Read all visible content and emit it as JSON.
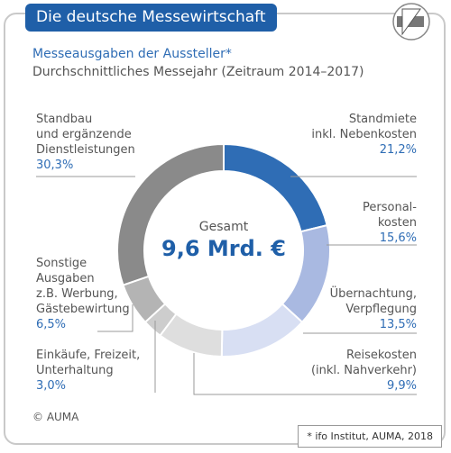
{
  "title": "Die deutsche Messewirtschaft",
  "source": "© AUMA",
  "footnote": "* ifo Institut, AUMA, 2018",
  "chart_data": {
    "type": "donut",
    "title": "Messeausgaben der Aussteller*",
    "subtitle": "Durchschnittliches Messejahr (Zeitraum 2014–2017)",
    "center_label": "Gesamt",
    "center_value": "9,6 Mrd. €",
    "categories": [
      "Standmiete\ninkl. Nebenkosten",
      "Personal-\nkosten",
      "Übernachtung,\nVerpflegung",
      "Reisekosten\n(inkl. Nahverkehr)",
      "Einkäufe, Freizeit,\nUnterhaltung",
      "Sonstige\nAusgaben\nz.B. Werbung,\nGästebewirtung",
      "Standbau\nund ergänzende\nDienstleistungen"
    ],
    "values": [
      21.2,
      15.6,
      13.5,
      9.9,
      3.0,
      6.5,
      30.3
    ],
    "value_labels": [
      "21,2%",
      "15,6%",
      "13,5%",
      "9,9%",
      "3,0%",
      "6,5%",
      "30,3%"
    ],
    "colors": [
      "#2f6db5",
      "#a9b9e1",
      "#d8dff3",
      "#dedede",
      "#cdcdcd",
      "#b4b4b4",
      "#8a8a8a"
    ]
  }
}
